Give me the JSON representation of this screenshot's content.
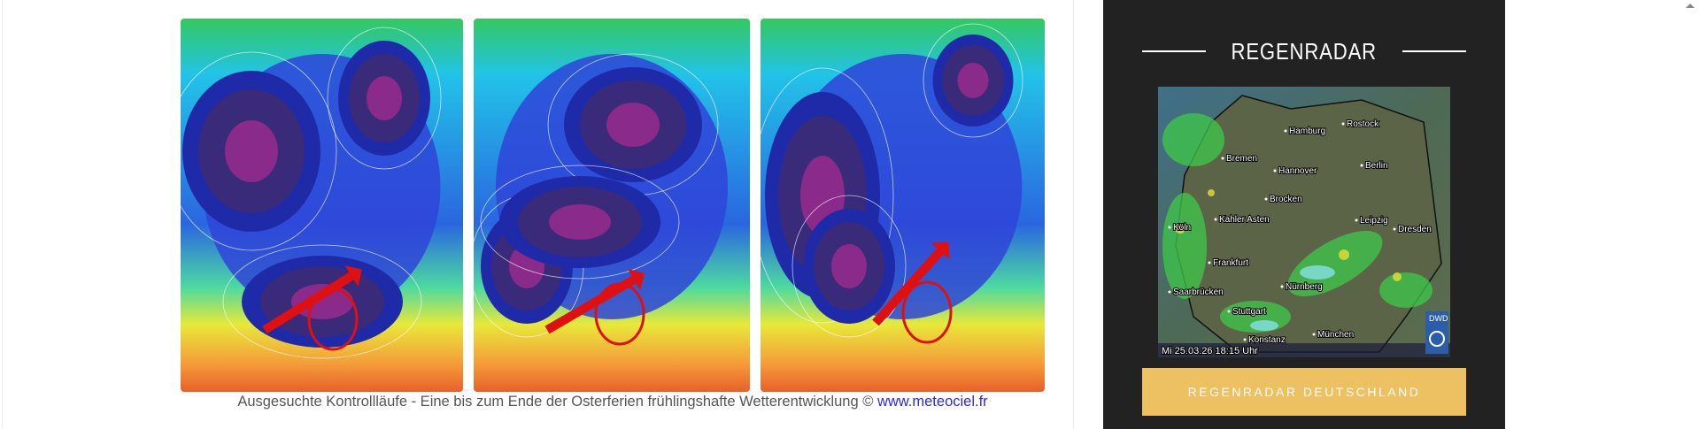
{
  "caption": {
    "text": "Ausgesuchte Kontrollläufe - Eine bis zum Ende der Osterferien frühlingshafte Wetterentwicklung ©",
    "link": "www.meteociel.fr"
  },
  "sidebar": {
    "heading": "REGENRADAR",
    "button": "REGENRADAR DEUTSCHLAND"
  },
  "radar": {
    "timestamp": "Mi 25.03.26  18:15 Uhr",
    "logo": "DWD",
    "cities": [
      "Hamburg",
      "Rostock",
      "Bremen",
      "Hannover",
      "Berlin",
      "Brocken",
      "Kahler Asten",
      "Leipzig",
      "Köln",
      "Dresden",
      "Frankfurt",
      "Nürnberg",
      "Saarbrücken",
      "Stuttgart",
      "München",
      "Konstanz"
    ]
  }
}
